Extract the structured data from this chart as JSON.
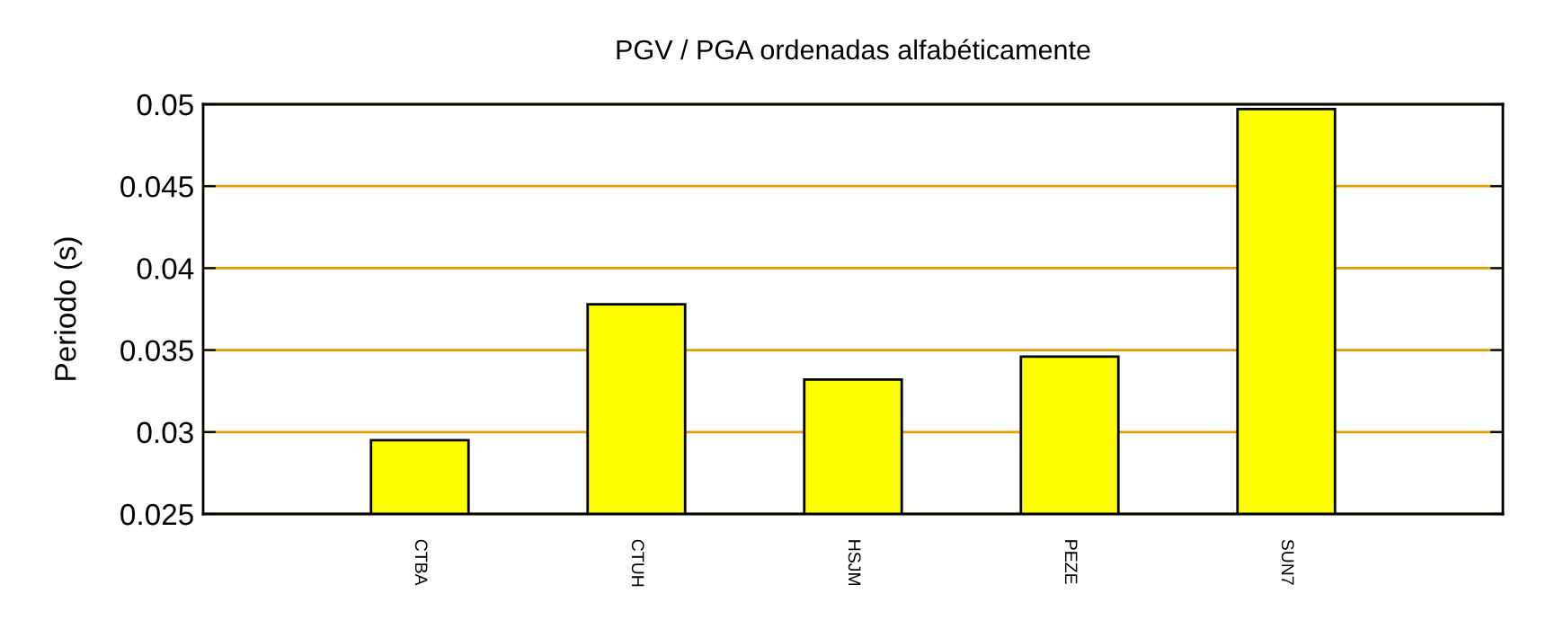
{
  "chart_data": {
    "type": "bar",
    "title": "PGV / PGA ordenadas alfabéticamente",
    "ylabel": "Periodo (s)",
    "categories": [
      "CTBA",
      "CTUH",
      "HSJM",
      "PEZE",
      "SUN7"
    ],
    "values": [
      0.0295,
      0.0378,
      0.0332,
      0.0346,
      0.0497
    ],
    "color": "#ffff00",
    "ylim": [
      0.025,
      0.05
    ],
    "yticks": [
      0.025,
      0.03,
      0.035,
      0.04,
      0.045,
      0.05
    ],
    "grid": "y"
  }
}
